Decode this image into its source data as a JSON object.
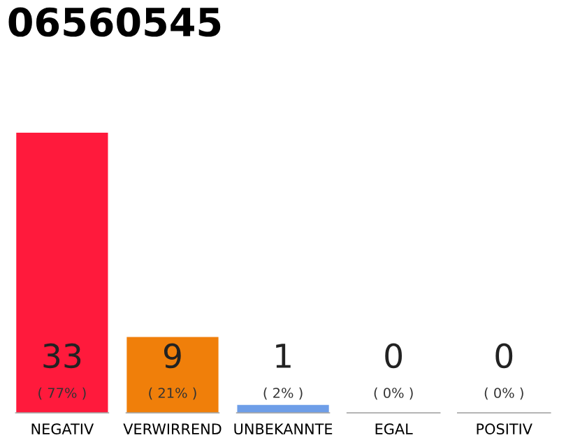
{
  "chart_data": {
    "type": "bar",
    "title": "06560545",
    "categories": [
      "NEGATIV",
      "VERWIRREND",
      "UNBEKANNTE",
      "EGAL",
      "POSITIV"
    ],
    "values": [
      33,
      9,
      1,
      0,
      0
    ],
    "colors": [
      "#ff1a3c",
      "#f07f0a",
      "#6e9ee8",
      "#c8c8c8",
      "#c8c8c8"
    ],
    "ylim": [
      0,
      33
    ],
    "data_labels": true,
    "grid": false,
    "legend": false,
    "annotations": [
      "( 77% )",
      "( 21% )",
      "( 2% )",
      "( 0% )",
      "( 0% )"
    ]
  }
}
